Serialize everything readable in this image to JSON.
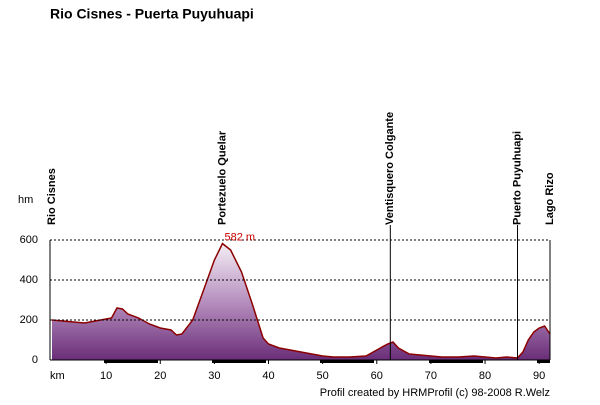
{
  "chart_data": {
    "type": "area",
    "title": "Rio Cisnes -  Puerta Puyuhuapi",
    "y_label": "hm",
    "x_label": "km",
    "footer": "Profil created by HRMProfil (c) 98-2008 R.Welz",
    "x": [
      0,
      2,
      4,
      6,
      8,
      10,
      11,
      12,
      13,
      14,
      16,
      18,
      20,
      22,
      23,
      24,
      26,
      28,
      30,
      31.5,
      33,
      35,
      37,
      39,
      40,
      42,
      44,
      46,
      48,
      50,
      52,
      55,
      58,
      60,
      62,
      63,
      64,
      66,
      68,
      70,
      72,
      75,
      78,
      80,
      82,
      84,
      86,
      87,
      88,
      89,
      90,
      91,
      92
    ],
    "values": [
      200,
      195,
      190,
      185,
      195,
      205,
      210,
      260,
      255,
      230,
      210,
      180,
      160,
      150,
      125,
      130,
      200,
      350,
      500,
      582,
      550,
      440,
      280,
      110,
      80,
      60,
      50,
      40,
      30,
      20,
      15,
      15,
      20,
      50,
      80,
      90,
      60,
      30,
      25,
      20,
      15,
      15,
      20,
      15,
      10,
      15,
      10,
      40,
      100,
      140,
      160,
      170,
      130
    ],
    "color": "#8b0000",
    "xlim": [
      0,
      92
    ],
    "ylim": [
      0,
      600
    ],
    "xticks": [
      10,
      20,
      30,
      40,
      50,
      60,
      70,
      80,
      90
    ],
    "yticks": [
      0,
      200,
      400,
      600
    ],
    "grid": true,
    "waypoints": [
      {
        "name": "Rio Cisnes",
        "km": 0
      },
      {
        "name": "Portezuelo Quelar",
        "km": 31.5
      },
      {
        "name": "Ventisquero Colgante",
        "km": 62.5
      },
      {
        "name": "Puerto Puyuhuapi",
        "km": 86
      },
      {
        "name": "Lago Rizo",
        "km": 92
      }
    ],
    "annotation": {
      "text": "582 m",
      "km": 31.5,
      "value": 582
    }
  }
}
